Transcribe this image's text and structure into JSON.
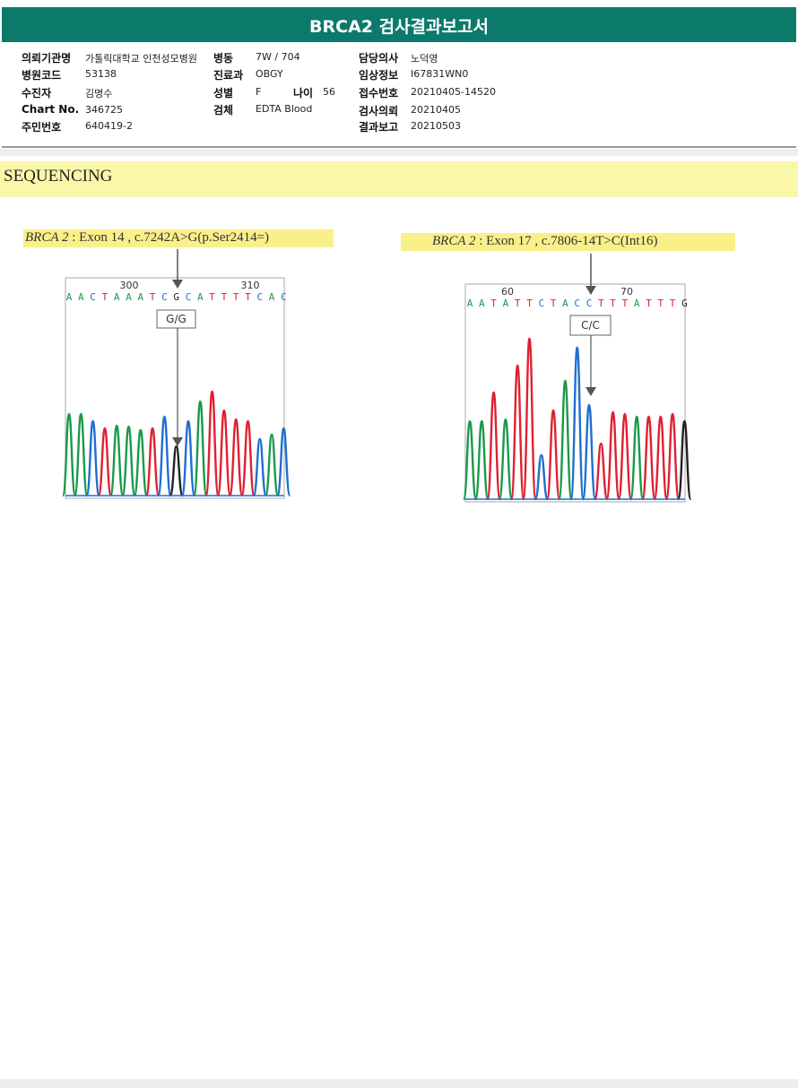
{
  "header": {
    "title": "BRCA2 검사결과보고서"
  },
  "info": {
    "rows": [
      [
        {
          "label": "의뢰기관명",
          "value": "가톨릭대학교 인천성모병원"
        },
        {
          "label": "병동",
          "value": "7W / 704"
        },
        {
          "label": "담당의사",
          "value": "노덕영"
        }
      ],
      [
        {
          "label": "병원코드",
          "value": "53138"
        },
        {
          "label": "진료과",
          "value": "OBGY"
        },
        {
          "label": "임상정보",
          "value": "I67831WN0"
        }
      ],
      [
        {
          "label": "수진자",
          "value": "김명수"
        },
        {
          "label": "성별",
          "value": "F"
        },
        {
          "label": "나이",
          "value": "56"
        },
        {
          "label": "접수번호",
          "value": "20210405-14520"
        }
      ],
      [
        {
          "label": "Chart No.",
          "value": "346725"
        },
        {
          "label": "검체",
          "value": "EDTA Blood"
        },
        {
          "label": "검사의뢰",
          "value": "20210405"
        }
      ],
      [
        {
          "label": "주민번호",
          "value": "640419-2"
        },
        {
          "label": "결과보고",
          "value": "20210503"
        }
      ]
    ]
  },
  "section": {
    "title": "SEQUENCING"
  },
  "base_colors": {
    "A": "#1a9a4a",
    "C": "#1f6fd0",
    "G": "#222222",
    "T": "#e02030"
  },
  "chromatograms": [
    {
      "gene": "BRCA 2",
      "variant": ": Exon 14 , c.7242A>G(p.Ser2414=)",
      "genotype": "G/G",
      "position_labels": [
        "300",
        "310"
      ],
      "bases": [
        "A",
        "A",
        "C",
        "T",
        "A",
        "A",
        "A",
        "T",
        "C",
        "G",
        "C",
        "A",
        "T",
        "T",
        "T",
        "T",
        "C",
        "A",
        "C"
      ]
    },
    {
      "gene": "BRCA 2",
      "variant": ": Exon 17 , c.7806-14T>C(Int16)",
      "genotype": "C/C",
      "position_labels": [
        "60",
        "70"
      ],
      "bases": [
        "A",
        "A",
        "T",
        "A",
        "T",
        "T",
        "C",
        "T",
        "A",
        "C",
        "C",
        "T",
        "T",
        "T",
        "A",
        "T",
        "T",
        "T",
        "G"
      ]
    }
  ]
}
